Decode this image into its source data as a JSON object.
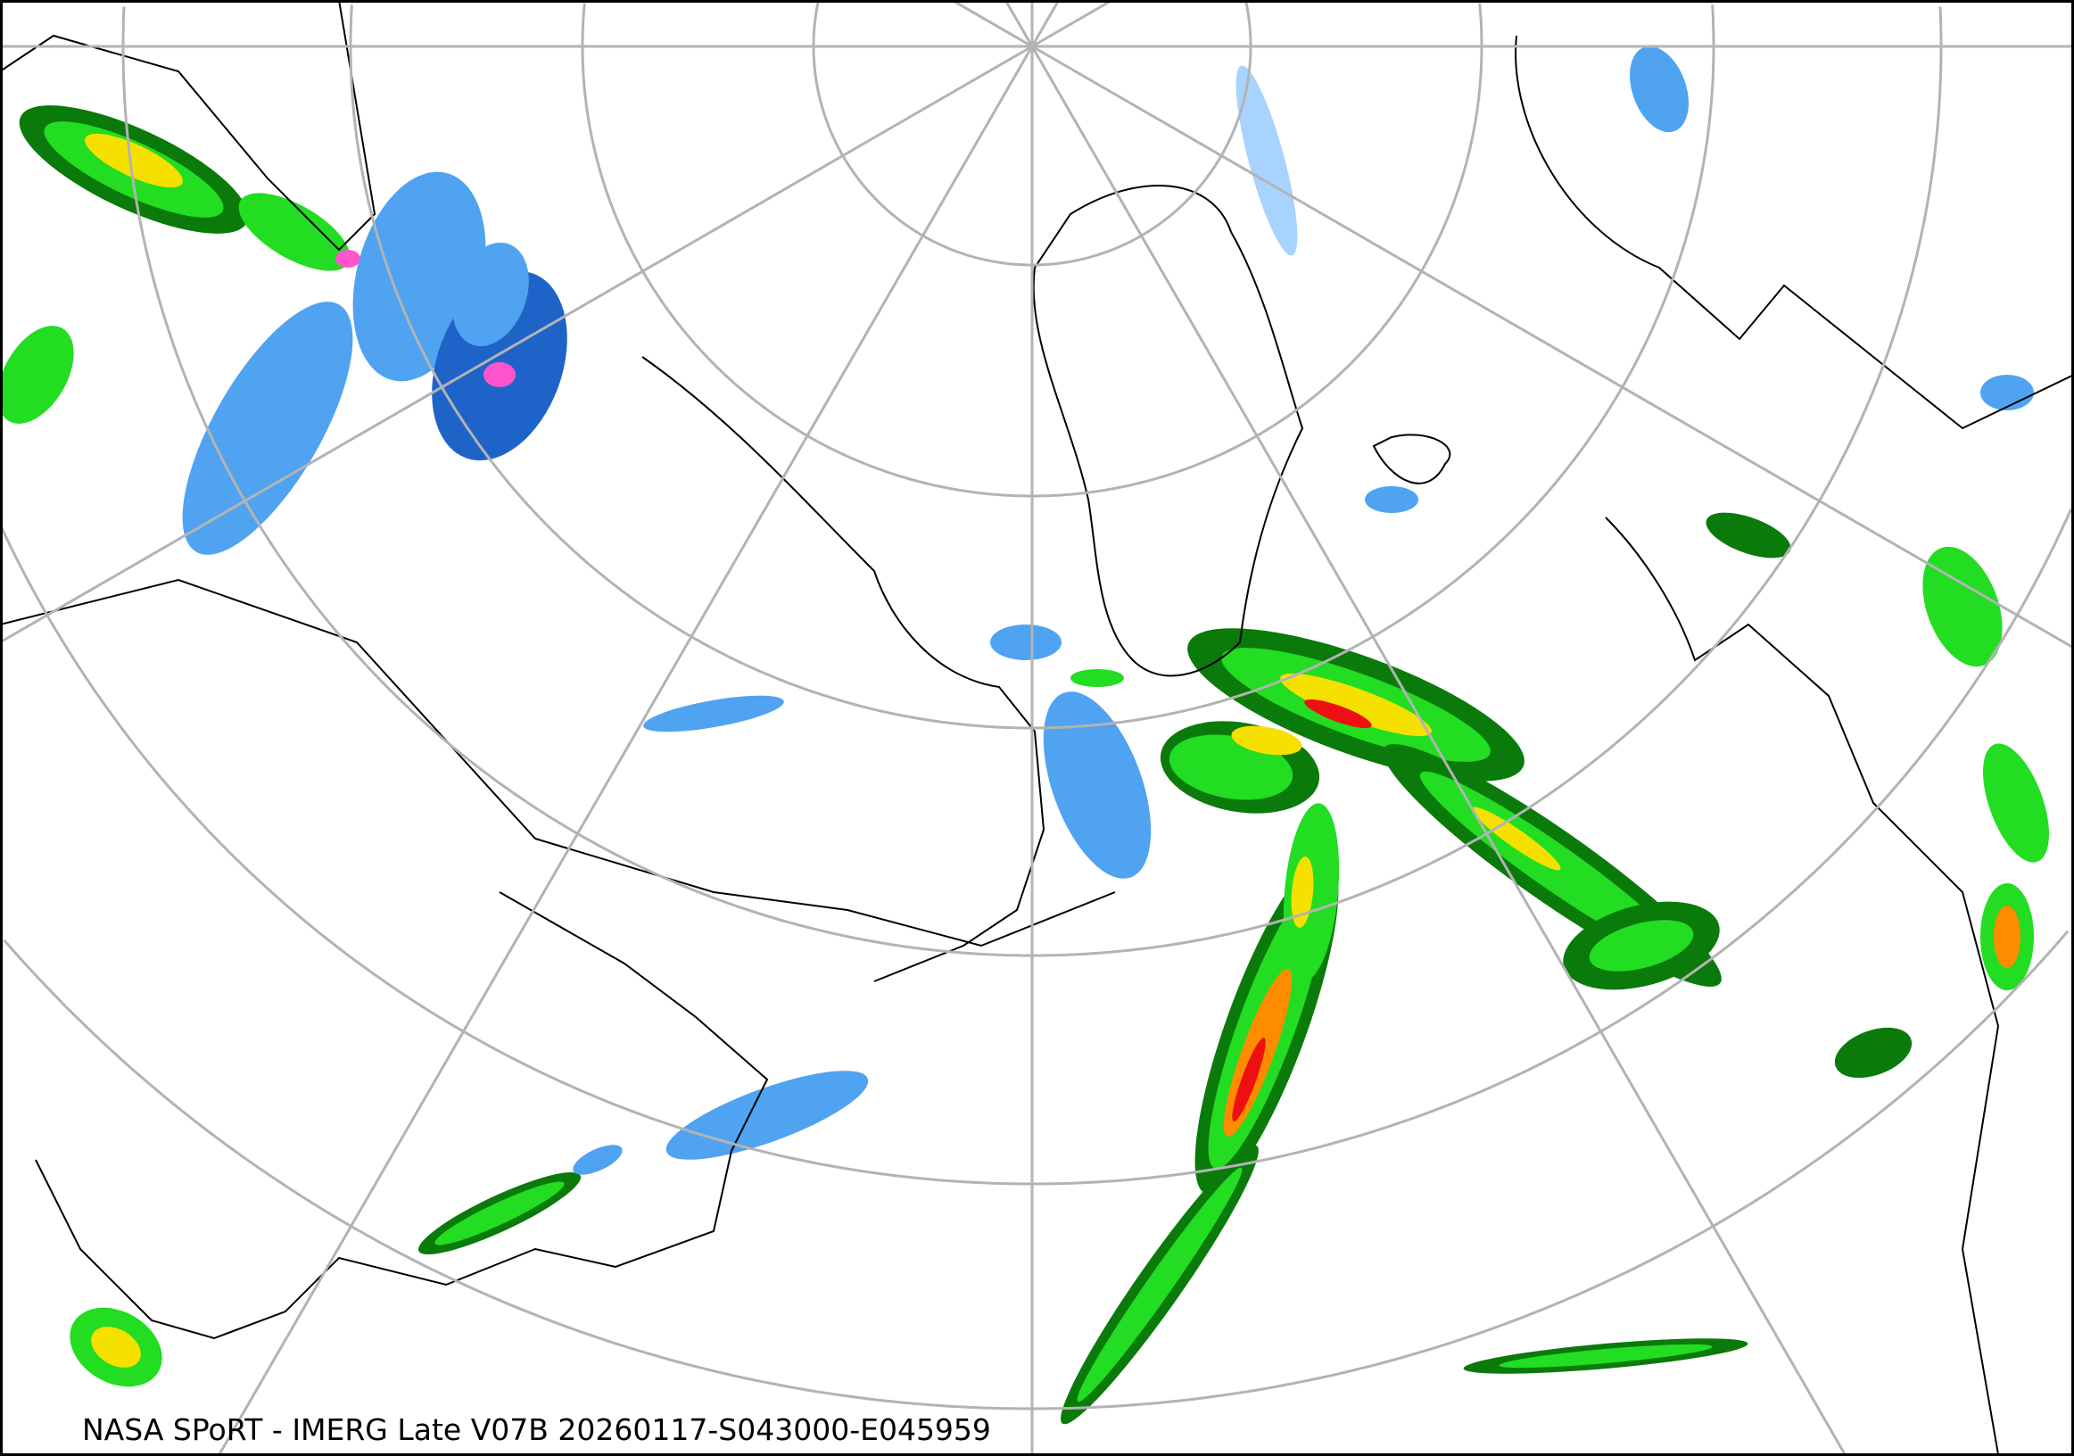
{
  "map": {
    "caption": "NASA SPoRT - IMERG Late V07B 20260117-S043000-E045959",
    "projection": "polar-stereographic",
    "graticule_color": "#b3b3b3",
    "coastline_color": "#000000",
    "precip_colors": {
      "very_light": "#a9d3ff",
      "light": "#4fa3f0",
      "moderate_snow": "#1e64c8",
      "light_rain": "#22dd22",
      "moderate_rain": "#98e000",
      "rain_heavy": "#f5e000",
      "rain_very_heavy": "#ff8c00",
      "rain_extreme": "#ee1010",
      "dark_green": "#0a7a0a",
      "mixed": "#ff55cc"
    }
  }
}
